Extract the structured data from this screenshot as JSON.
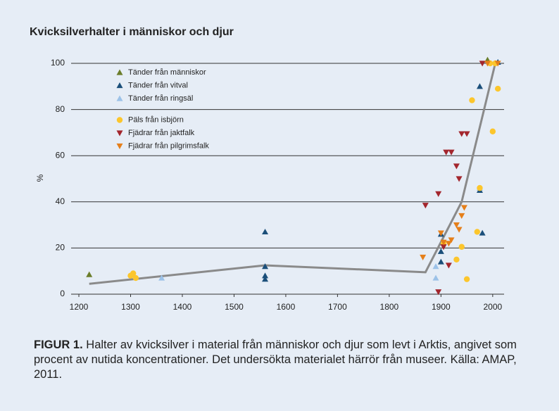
{
  "chart_data": {
    "type": "scatter",
    "title": "Kvicksilverhalter i människor och djur",
    "ylabel": "%",
    "xlim": [
      1185,
      2022
    ],
    "ylim": [
      0,
      100
    ],
    "xticks": [
      1200,
      1300,
      1400,
      1500,
      1600,
      1700,
      1800,
      1900,
      2000
    ],
    "yticks": [
      0,
      20,
      40,
      60,
      80,
      100
    ],
    "grid": true,
    "legend": "upper left",
    "series": [
      {
        "name": "Tänder från människor",
        "color": "#6b7d2a",
        "marker": "triangle-up",
        "x": [
          1220,
          1990
        ],
        "y": [
          8.5,
          101.5
        ]
      },
      {
        "name": "Tänder från vitval",
        "color": "#1b4f7a",
        "marker": "triangle-up",
        "x": [
          1560,
          1560,
          1560,
          1560,
          1900,
          1900,
          1900,
          1975,
          1975,
          1980,
          2010
        ],
        "y": [
          27,
          12,
          8,
          6.5,
          26,
          18.5,
          14,
          90,
          45,
          26.5,
          100.5
        ]
      },
      {
        "name": "Tänder från ringsäl",
        "color": "#9cc2e8",
        "marker": "triangle-up",
        "x": [
          1360,
          1890,
          1890,
          1975
        ],
        "y": [
          7,
          12,
          7,
          46
        ]
      },
      {
        "name": "Päls från isbjörn",
        "color": "#fcc62c",
        "marker": "circle",
        "x": [
          1300,
          1305,
          1310,
          1905,
          1930,
          1940,
          1950,
          1960,
          1970,
          1975,
          1995,
          2000,
          2005,
          2010
        ],
        "y": [
          8,
          9,
          7,
          22,
          15,
          20.5,
          6.5,
          84,
          27,
          46,
          100,
          70.5,
          100,
          89
        ]
      },
      {
        "name": "Fjädrar från jaktfalk",
        "color": "#a3262d",
        "marker": "triangle-down",
        "x": [
          1870,
          1895,
          1895,
          1905,
          1910,
          1915,
          1920,
          1930,
          1935,
          1940,
          1950,
          1980
        ],
        "y": [
          38.5,
          43.5,
          1,
          20.5,
          61.5,
          12.5,
          61.5,
          55.5,
          50,
          69.5,
          69.5,
          100
        ]
      },
      {
        "name": "Fjädrar från pilgrimsfalk",
        "color": "#e57f1a",
        "marker": "triangle-down",
        "x": [
          1865,
          1900,
          1905,
          1915,
          1920,
          1930,
          1935,
          1940,
          1945,
          1990,
          2010
        ],
        "y": [
          16,
          26.5,
          22.5,
          22,
          23.5,
          30,
          28,
          34,
          37.5,
          100,
          100
        ]
      }
    ],
    "trend": {
      "color": "#8a8a8a",
      "x": [
        1220,
        1560,
        1870,
        1940,
        2005
      ],
      "y": [
        4.5,
        12.5,
        9.5,
        40,
        100
      ]
    },
    "caption": {
      "label": "FIGUR 1.",
      "text": "Halter av kvicksilver i material från människor och djur som levt i Arktis, angivet som procent av nutida koncentrationer. Det undersökta materialet härrör från museer. Källa: AMAP, 2011."
    }
  }
}
